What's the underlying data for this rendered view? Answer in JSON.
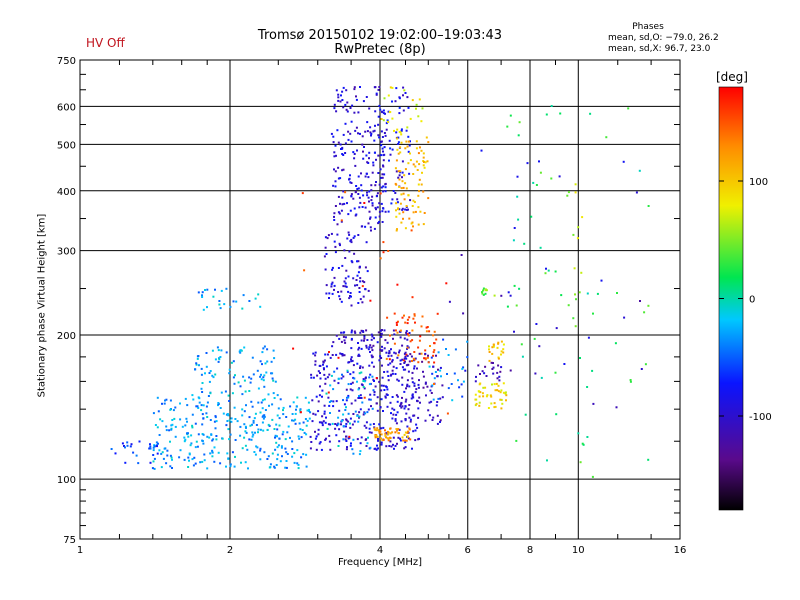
{
  "header": {
    "status": "HV Off",
    "title_line1": "Tromsø 20150102  19:02:00–19:03:43",
    "title_line2": "RwPretec (8p)"
  },
  "stats": {
    "title": "Phases",
    "o_line": "mean, sd,O: −79.0, 26.2",
    "x_line": "mean, sd,X:  96.7, 23.0"
  },
  "colors": {
    "accent_status": "#c0141e",
    "grid": "#000000"
  },
  "chart_data": {
    "type": "scatter",
    "xscale": "log",
    "yscale": "log",
    "xlabel": "Frequency [MHz]",
    "ylabel": "Stationary phase Virtual Height [km]",
    "xlim": [
      1,
      16
    ],
    "ylim": [
      75,
      750
    ],
    "xticks": [
      1,
      2,
      4,
      6,
      8,
      10,
      16
    ],
    "yticks": [
      75,
      100,
      200,
      300,
      400,
      500,
      600,
      750
    ],
    "grid": true,
    "colorbar": {
      "label": "[deg]",
      "range": [
        -180,
        180
      ],
      "ticks": [
        -100,
        0,
        100
      ]
    },
    "clusters": [
      {
        "xr": [
          1.4,
          2.9
        ],
        "yr": [
          105,
          150
        ],
        "phase": -30,
        "n": 340
      },
      {
        "xr": [
          1.7,
          2.5
        ],
        "yr": [
          150,
          190
        ],
        "phase": -28,
        "n": 90
      },
      {
        "xr": [
          1.7,
          2.3
        ],
        "yr": [
          225,
          250
        ],
        "phase": -30,
        "n": 25
      },
      {
        "xr": [
          1.15,
          1.5
        ],
        "yr": [
          108,
          120
        ],
        "phase": -60,
        "n": 25
      },
      {
        "xr": [
          2.9,
          4.8
        ],
        "yr": [
          115,
          185
        ],
        "phase": -95,
        "n": 360
      },
      {
        "xr": [
          3.1,
          3.9
        ],
        "yr": [
          112,
          170
        ],
        "phase": -25,
        "n": 60
      },
      {
        "xr": [
          3.2,
          4.6
        ],
        "yr": [
          185,
          205
        ],
        "phase": -100,
        "n": 80
      },
      {
        "xr": [
          3.1,
          3.8
        ],
        "yr": [
          230,
          330
        ],
        "phase": -95,
        "n": 90
      },
      {
        "xr": [
          3.2,
          4.1
        ],
        "yr": [
          330,
          660
        ],
        "phase": -95,
        "n": 210
      },
      {
        "xr": [
          3.9,
          4.6
        ],
        "yr": [
          360,
          660
        ],
        "phase": -90,
        "n": 90
      },
      {
        "xr": [
          4.3,
          5.0
        ],
        "yr": [
          330,
          520
        ],
        "phase": 110,
        "n": 90
      },
      {
        "xr": [
          4.0,
          4.9
        ],
        "yr": [
          520,
          660
        ],
        "phase": 80,
        "n": 25
      },
      {
        "xr": [
          4.1,
          5.2
        ],
        "yr": [
          175,
          225
        ],
        "phase": 150,
        "n": 60
      },
      {
        "xr": [
          3.9,
          4.6
        ],
        "yr": [
          120,
          128
        ],
        "phase": 120,
        "n": 55
      },
      {
        "xr": [
          4.4,
          5.4
        ],
        "yr": [
          130,
          185
        ],
        "phase": -110,
        "n": 70
      },
      {
        "xr": [
          5.0,
          6.0
        ],
        "yr": [
          145,
          200
        ],
        "phase": -40,
        "n": 30
      },
      {
        "xr": [
          6.2,
          7.2
        ],
        "yr": [
          140,
          160
        ],
        "phase": 90,
        "n": 45
      },
      {
        "xr": [
          6.6,
          7.1
        ],
        "yr": [
          175,
          195
        ],
        "phase": 100,
        "n": 20
      },
      {
        "xr": [
          6.4,
          6.8
        ],
        "yr": [
          240,
          255
        ],
        "phase": 40,
        "n": 10
      },
      {
        "xr": [
          6.2,
          7.0
        ],
        "yr": [
          160,
          175
        ],
        "phase": -110,
        "n": 20
      },
      {
        "xr": [
          7.2,
          14.0
        ],
        "yr": [
          100,
          620
        ],
        "phase": 20,
        "n": 60
      },
      {
        "xr": [
          2.6,
          5.5
        ],
        "yr": [
          120,
          420
        ],
        "phase": 165,
        "n": 30
      },
      {
        "xr": [
          5.5,
          14.0
        ],
        "yr": [
          130,
          500
        ],
        "phase": -100,
        "n": 30
      },
      {
        "xr": [
          9.5,
          10.2
        ],
        "yr": [
          200,
          420
        ],
        "phase": 60,
        "n": 15
      }
    ]
  }
}
